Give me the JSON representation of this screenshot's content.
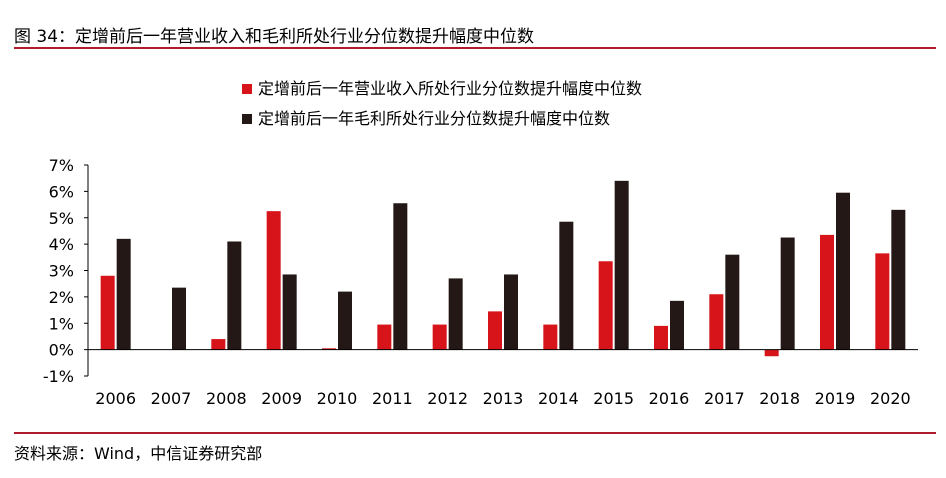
{
  "figure": {
    "title": "图 34：定增前后一年营业收入和毛利所处行业分位数提升幅度中位数",
    "source": "资料来源：Wind，中信证券研究部"
  },
  "chart_data": {
    "type": "bar",
    "categories": [
      "2006",
      "2007",
      "2008",
      "2009",
      "2010",
      "2011",
      "2012",
      "2013",
      "2014",
      "2015",
      "2016",
      "2017",
      "2018",
      "2019",
      "2020"
    ],
    "series": [
      {
        "name": "定增前后一年营业收入所处行业分位数提升幅度中位数",
        "color": "#d7141a",
        "values": [
          2.8,
          0.0,
          0.4,
          5.25,
          0.05,
          0.95,
          0.95,
          1.45,
          0.95,
          3.35,
          0.9,
          2.1,
          -0.25,
          4.35,
          3.65
        ]
      },
      {
        "name": "定增前后一年毛利所处行业分位数提升幅度中位数",
        "color": "#231815",
        "values": [
          4.2,
          2.35,
          4.1,
          2.85,
          2.2,
          5.55,
          2.7,
          2.85,
          4.85,
          6.4,
          1.85,
          3.6,
          4.25,
          5.95,
          5.3
        ]
      }
    ],
    "ylim": [
      -1,
      7
    ],
    "yticks": [
      "-1%",
      "0%",
      "1%",
      "2%",
      "3%",
      "4%",
      "5%",
      "6%",
      "7%"
    ],
    "unit": "%",
    "legend": "top",
    "grid": false
  }
}
